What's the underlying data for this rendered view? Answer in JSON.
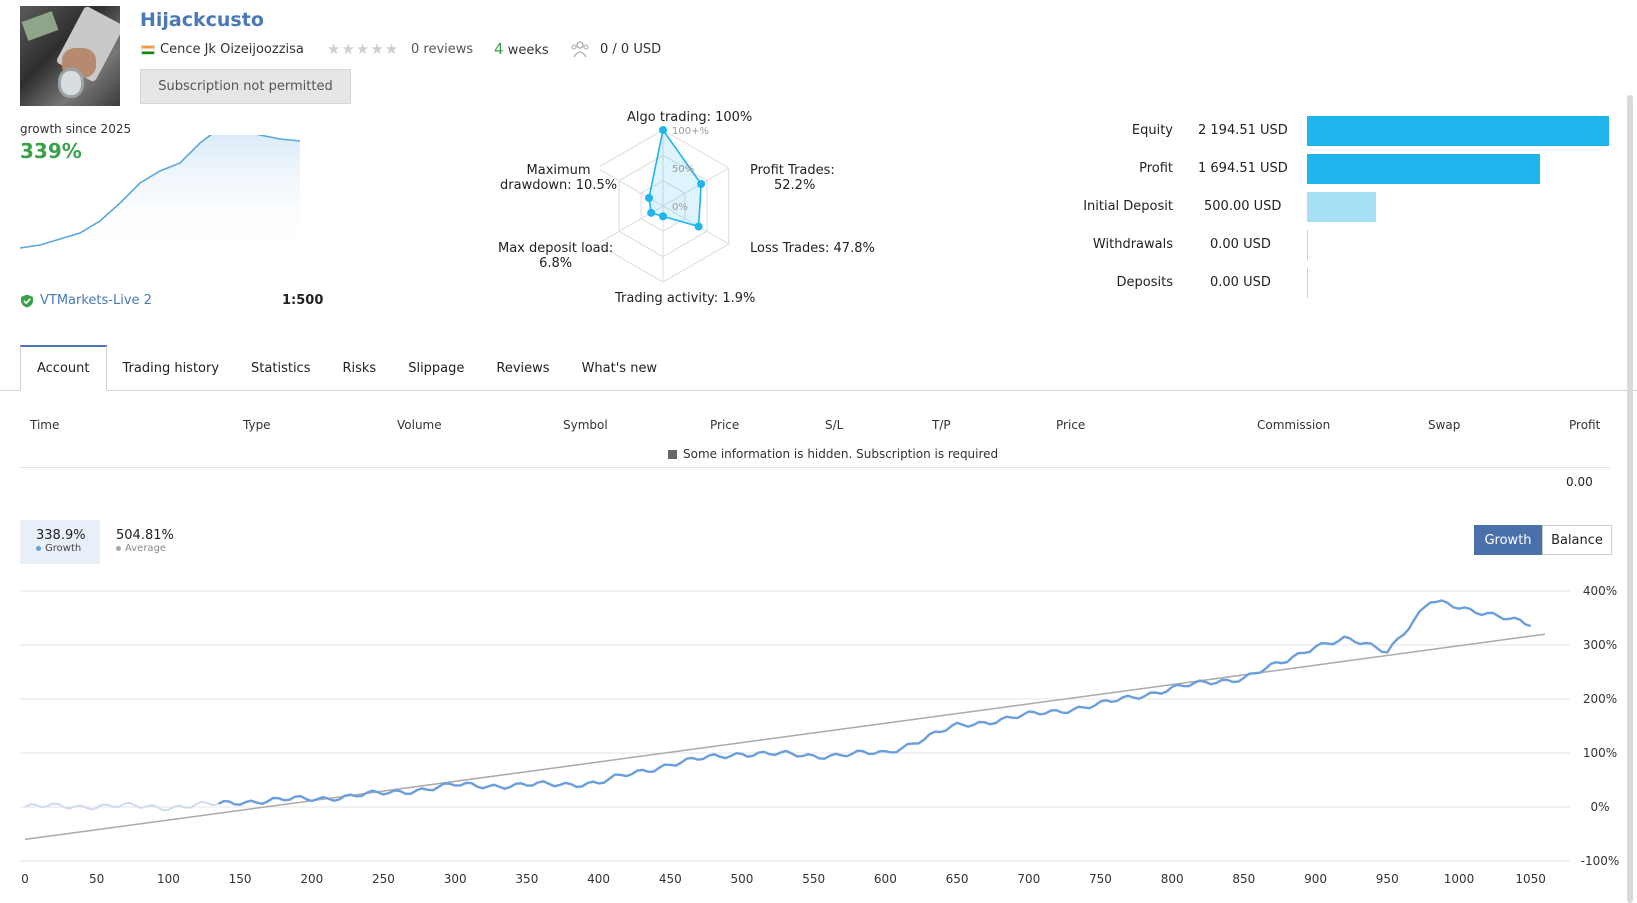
{
  "header": {
    "title": "Hijackcusto",
    "author": "Cence Jk Oizeijoozzisa",
    "stars": "★★★★★",
    "reviews": "0 reviews",
    "weeks_num": "4",
    "weeks_label": "weeks",
    "subscribers": "0 / 0 USD",
    "subscription_button": "Subscription not permitted"
  },
  "growth_summary": {
    "label": "growth since 2025",
    "value": "339%",
    "broker": "VTMarkets-Live 2",
    "leverage": "1:500"
  },
  "radar": {
    "labels": {
      "algo": "Algo trading: 100%",
      "profit_trades_a": "Profit Trades:",
      "profit_trades_b": "52.2%",
      "loss_trades": "Loss Trades: 47.8%",
      "activity": "Trading activity: 1.9%",
      "load_a": "Max deposit load:",
      "load_b": "6.8%",
      "dd_a": "Maximum",
      "dd_b": "drawdown: 10.5%"
    },
    "scale": [
      "100+%",
      "50%",
      "0%"
    ],
    "values": {
      "algo": 100,
      "profit_trades": 52.2,
      "loss_trades": 47.8,
      "activity": 1.9,
      "load": 6.8,
      "drawdown": 10.5
    }
  },
  "money": [
    {
      "label": "Equity",
      "value": "2 194.51 USD",
      "amount": 2194.51
    },
    {
      "label": "Profit",
      "value": "1 694.51 USD",
      "amount": 1694.51
    },
    {
      "label": "Initial Deposit",
      "value": "500.00 USD",
      "amount": 500.0
    },
    {
      "label": "Withdrawals",
      "value": "0.00 USD",
      "amount": 0
    },
    {
      "label": "Deposits",
      "value": "0.00 USD",
      "amount": 0
    }
  ],
  "tabs": [
    "Account",
    "Trading history",
    "Statistics",
    "Risks",
    "Slippage",
    "Reviews",
    "What's new"
  ],
  "table": {
    "headers": [
      "Time",
      "Type",
      "Volume",
      "Symbol",
      "Price",
      "S/L",
      "T/P",
      "Price",
      "Commission",
      "Swap",
      "Profit"
    ],
    "hidden_note": "Some information is hidden. Subscription is required",
    "total": "0.00"
  },
  "legend": {
    "growth_value": "338.9%",
    "growth_label": "Growth",
    "average_value": "504.81%",
    "average_label": "Average"
  },
  "toggle": {
    "growth": "Growth",
    "balance": "Balance"
  },
  "colors": {
    "accent": "#4a79b6",
    "green": "#3aa14a",
    "bar": "#1fb4ec",
    "bar_light": "#a6e0f5",
    "growth_line": "#6a9fdc",
    "average_line": "#aaaaaa"
  },
  "chart_data": {
    "type": "line",
    "xlabel": "",
    "ylabel": "",
    "x_ticks": [
      0,
      50,
      100,
      150,
      200,
      250,
      300,
      350,
      400,
      450,
      500,
      550,
      600,
      650,
      700,
      750,
      800,
      850,
      900,
      950,
      1000,
      1050
    ],
    "y_ticks": [
      "400%",
      "300%",
      "200%",
      "100%",
      "0%",
      "-100%"
    ],
    "ylim": [
      -100,
      400
    ],
    "xlim": [
      0,
      1060
    ],
    "series": [
      {
        "name": "Growth",
        "points": [
          [
            0,
            0
          ],
          [
            50,
            2
          ],
          [
            100,
            0
          ],
          [
            135,
            5
          ],
          [
            150,
            10
          ],
          [
            200,
            15
          ],
          [
            250,
            25
          ],
          [
            300,
            40
          ],
          [
            350,
            40
          ],
          [
            400,
            45
          ],
          [
            450,
            80
          ],
          [
            500,
            100
          ],
          [
            550,
            95
          ],
          [
            600,
            100
          ],
          [
            650,
            150
          ],
          [
            700,
            170
          ],
          [
            750,
            190
          ],
          [
            800,
            220
          ],
          [
            850,
            240
          ],
          [
            880,
            270
          ],
          [
            900,
            300
          ],
          [
            920,
            310
          ],
          [
            950,
            290
          ],
          [
            980,
            380
          ],
          [
            1000,
            370
          ],
          [
            1020,
            360
          ],
          [
            1050,
            335
          ]
        ]
      },
      {
        "name": "Average",
        "points": [
          [
            0,
            -60
          ],
          [
            1060,
            320
          ]
        ]
      }
    ],
    "mini_series": [
      [
        0,
        5
      ],
      [
        20,
        8
      ],
      [
        40,
        14
      ],
      [
        60,
        20
      ],
      [
        80,
        32
      ],
      [
        100,
        50
      ],
      [
        120,
        70
      ],
      [
        140,
        82
      ],
      [
        160,
        90
      ],
      [
        180,
        110
      ],
      [
        200,
        125
      ],
      [
        220,
        122
      ],
      [
        240,
        118
      ],
      [
        260,
        114
      ],
      [
        280,
        112
      ]
    ]
  }
}
